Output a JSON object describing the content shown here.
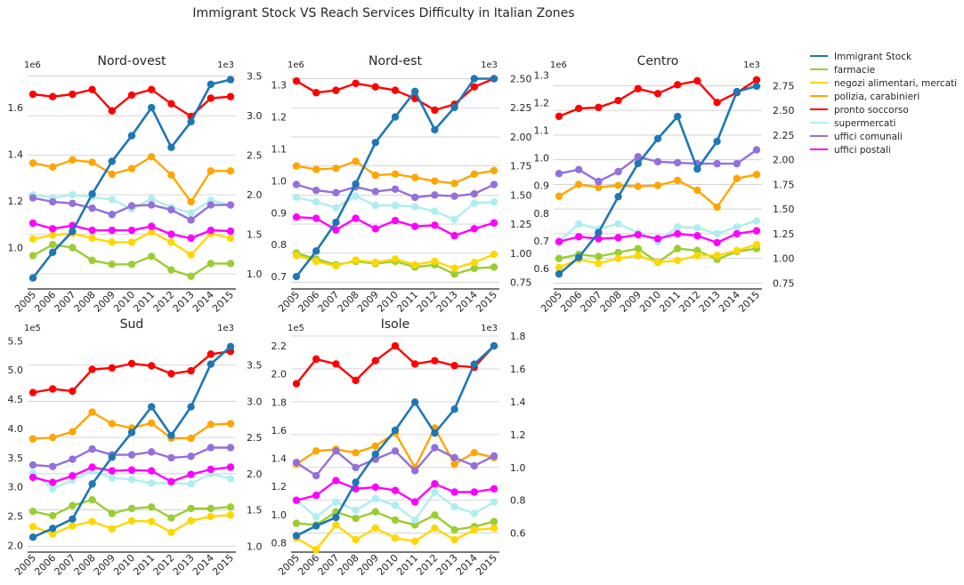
{
  "colors": {
    "Immigrant Stock": "#1f77b4",
    "farmacie": "#9acd32",
    "negozi alimentari, mercati": "#ffd700",
    "polizia, carabinieri": "#ffa500",
    "pronto soccorso": "#ff0000",
    "supermercati": "#afeeee",
    "uffici comunali": "#9370db",
    "uffici postali": "#ff00ff"
  },
  "chart_data": {
    "type": "line",
    "title": "Immigrant Stock VS Reach Services Difficulty in Italian Zones",
    "legend_position": "right",
    "legend": [
      "Immigrant Stock",
      "farmacie",
      "negozi alimentari, mercati",
      "polizia, carabinieri",
      "pronto soccorso",
      "supermercati",
      "uffici comunali",
      "uffici postali"
    ],
    "grid": "horizontal, right axis",
    "x": [
      "2005",
      "2006",
      "2007",
      "2008",
      "2009",
      "2010",
      "2011",
      "2012",
      "2013",
      "2014",
      "2015"
    ],
    "panels": [
      {
        "title": "Nord-ovest",
        "left_exponent": "1e6",
        "right_exponent": "1e3",
        "left_ticks": [
          "1.0",
          "1.2",
          "1.4",
          "1.6"
        ],
        "right_ticks": [
          "1.0",
          "1.5",
          "2.0",
          "2.5",
          "3.0",
          "3.5"
        ],
        "left_ylim": [
          0.827,
          1.749
        ],
        "right_ylim": [
          0.82,
          3.54
        ],
        "immigrant_stock": [
          0.87,
          0.98,
          1.07,
          1.23,
          1.37,
          1.48,
          1.6,
          1.43,
          1.54,
          1.7,
          1.72
        ],
        "series": [
          {
            "name": "farmacie",
            "values": [
              1.23,
              1.37,
              1.33,
              1.17,
              1.12,
              1.12,
              1.22,
              1.05,
              0.97,
              1.13,
              1.13
            ]
          },
          {
            "name": "negozi alimentari, mercati",
            "values": [
              1.44,
              1.49,
              1.51,
              1.45,
              1.4,
              1.4,
              1.53,
              1.4,
              1.24,
              1.51,
              1.45
            ]
          },
          {
            "name": "polizia, carabinieri",
            "values": [
              2.4,
              2.35,
              2.44,
              2.41,
              2.26,
              2.33,
              2.48,
              2.25,
              1.91,
              2.3,
              2.3
            ]
          },
          {
            "name": "pronto soccorso",
            "values": [
              3.27,
              3.24,
              3.27,
              3.33,
              3.06,
              3.26,
              3.33,
              3.15,
              2.99,
              3.22,
              3.24
            ]
          },
          {
            "name": "supermercati",
            "values": [
              2.0,
              1.96,
              2.0,
              1.97,
              1.94,
              1.82,
              1.95,
              1.84,
              1.77,
              1.93,
              1.87
            ]
          },
          {
            "name": "uffici comunali",
            "values": [
              1.96,
              1.91,
              1.89,
              1.83,
              1.75,
              1.86,
              1.87,
              1.81,
              1.68,
              1.87,
              1.87
            ]
          },
          {
            "name": "uffici postali",
            "values": [
              1.64,
              1.57,
              1.61,
              1.55,
              1.55,
              1.55,
              1.6,
              1.5,
              1.45,
              1.55,
              1.54
            ]
          }
        ]
      },
      {
        "title": "Nord-est",
        "left_exponent": "1e6",
        "right_exponent": "1e3",
        "left_ticks": [
          "0.7",
          "0.8",
          "0.9",
          "1.0",
          "1.1",
          "1.2",
          "1.3"
        ],
        "right_ticks": [
          "0.75",
          "1.00",
          "1.25",
          "1.50",
          "1.75",
          "2.00",
          "2.25",
          "2.50"
        ],
        "left_ylim": [
          0.664,
          1.338
        ],
        "right_ylim": [
          0.7,
          2.55
        ],
        "immigrant_stock": [
          0.7,
          0.78,
          0.87,
          0.99,
          1.12,
          1.2,
          1.28,
          1.16,
          1.23,
          1.32,
          1.32
        ],
        "series": [
          {
            "name": "farmacie",
            "values": [
              1.0,
              0.95,
              0.9,
              0.93,
              0.91,
              0.93,
              0.88,
              0.9,
              0.82,
              0.87,
              0.88
            ]
          },
          {
            "name": "negozi alimentari, mercati",
            "values": [
              0.98,
              0.93,
              0.89,
              0.94,
              0.92,
              0.95,
              0.9,
              0.93,
              0.87,
              0.92,
              0.99
            ]
          },
          {
            "name": "polizia, carabinieri",
            "values": [
              1.75,
              1.72,
              1.73,
              1.79,
              1.67,
              1.68,
              1.65,
              1.62,
              1.6,
              1.68,
              1.71
            ]
          },
          {
            "name": "pronto soccorso",
            "values": [
              2.48,
              2.38,
              2.4,
              2.46,
              2.43,
              2.4,
              2.33,
              2.23,
              2.28,
              2.43,
              2.5
            ]
          },
          {
            "name": "supermercati",
            "values": [
              1.48,
              1.44,
              1.39,
              1.49,
              1.41,
              1.41,
              1.4,
              1.36,
              1.29,
              1.43,
              1.44
            ]
          },
          {
            "name": "uffici comunali",
            "values": [
              1.59,
              1.54,
              1.52,
              1.57,
              1.53,
              1.55,
              1.48,
              1.5,
              1.49,
              1.51,
              1.59
            ]
          },
          {
            "name": "uffici postali",
            "values": [
              1.31,
              1.3,
              1.2,
              1.3,
              1.21,
              1.28,
              1.23,
              1.24,
              1.15,
              1.21,
              1.26
            ]
          }
        ]
      },
      {
        "title": "Centro",
        "left_exponent": "1e6",
        "right_exponent": "1e3",
        "left_ticks": [
          "0.6",
          "0.7",
          "0.8",
          "0.9",
          "1.0",
          "1.1",
          "1.2",
          "1.3"
        ],
        "right_ticks": [
          "0.75",
          "1.00",
          "1.25",
          "1.50",
          "1.75",
          "2.00",
          "2.25",
          "2.50",
          "2.75"
        ],
        "left_ylim": [
          0.529,
          1.308
        ],
        "right_ylim": [
          0.7,
          2.88
        ],
        "immigrant_stock": [
          0.58,
          0.64,
          0.73,
          0.86,
          0.98,
          1.07,
          1.15,
          0.96,
          1.06,
          1.24,
          1.26
        ],
        "series": [
          {
            "name": "farmacie",
            "values": [
              1.0,
              1.04,
              1.02,
              1.06,
              1.1,
              0.96,
              1.1,
              1.08,
              0.99,
              1.07,
              1.1
            ]
          },
          {
            "name": "negozi alimentari, mercati",
            "values": [
              0.91,
              0.99,
              0.95,
              1.0,
              1.03,
              0.96,
              0.98,
              1.03,
              1.03,
              1.08,
              1.14
            ]
          },
          {
            "name": "polizia, carabinieri",
            "values": [
              1.63,
              1.75,
              1.72,
              1.74,
              1.73,
              1.74,
              1.79,
              1.69,
              1.52,
              1.81,
              1.85
            ]
          },
          {
            "name": "pronto soccorso",
            "values": [
              2.44,
              2.52,
              2.53,
              2.6,
              2.72,
              2.67,
              2.76,
              2.8,
              2.58,
              2.68,
              2.81
            ]
          },
          {
            "name": "supermercati",
            "values": [
              1.17,
              1.35,
              1.3,
              1.35,
              1.26,
              1.17,
              1.32,
              1.31,
              1.25,
              1.32,
              1.38
            ]
          },
          {
            "name": "uffici comunali",
            "values": [
              1.86,
              1.9,
              1.78,
              1.88,
              2.03,
              1.98,
              1.97,
              1.96,
              1.96,
              1.96,
              2.1
            ]
          },
          {
            "name": "uffici postali",
            "values": [
              1.17,
              1.22,
              1.2,
              1.21,
              1.24,
              1.2,
              1.25,
              1.23,
              1.16,
              1.25,
              1.28
            ]
          }
        ]
      },
      {
        "title": "Sud",
        "left_exponent": "1e5",
        "right_exponent": "1e3",
        "left_ticks": [
          "2.0",
          "2.5",
          "3.0",
          "3.5",
          "4.0",
          "4.5",
          "5.0",
          "5.5"
        ],
        "right_ticks": [
          "1.0",
          "1.5",
          "2.0",
          "2.5",
          "3.0",
          "3.5"
        ],
        "left_ylim": [
          1.9,
          5.58
        ],
        "right_ylim": [
          0.93,
          3.9
        ],
        "immigrant_stock": [
          2.14,
          2.29,
          2.45,
          3.05,
          3.51,
          3.93,
          4.37,
          3.88,
          4.37,
          5.1,
          5.4
        ],
        "series": [
          {
            "name": "farmacie",
            "values": [
              1.48,
              1.42,
              1.56,
              1.64,
              1.45,
              1.52,
              1.54,
              1.39,
              1.52,
              1.52,
              1.54
            ]
          },
          {
            "name": "negozi alimentari, mercati",
            "values": [
              1.27,
              1.17,
              1.28,
              1.34,
              1.24,
              1.35,
              1.34,
              1.19,
              1.35,
              1.41,
              1.43
            ]
          },
          {
            "name": "polizia, carabinieri",
            "values": [
              2.48,
              2.5,
              2.58,
              2.85,
              2.69,
              2.63,
              2.7,
              2.49,
              2.49,
              2.68,
              2.69
            ]
          },
          {
            "name": "pronto soccorso",
            "values": [
              3.12,
              3.17,
              3.14,
              3.44,
              3.46,
              3.52,
              3.49,
              3.38,
              3.42,
              3.65,
              3.69
            ]
          },
          {
            "name": "supermercati",
            "values": [
              2.01,
              1.79,
              1.91,
              2.04,
              1.94,
              1.92,
              1.87,
              1.87,
              1.86,
              2.0,
              1.93
            ]
          },
          {
            "name": "uffici comunali",
            "values": [
              2.12,
              2.1,
              2.2,
              2.34,
              2.26,
              2.26,
              2.3,
              2.22,
              2.24,
              2.36,
              2.36
            ]
          },
          {
            "name": "uffici postali",
            "values": [
              1.95,
              1.88,
              1.97,
              2.09,
              2.04,
              2.05,
              2.04,
              1.89,
              1.99,
              2.06,
              2.09
            ]
          }
        ]
      },
      {
        "title": "Isole",
        "left_exponent": "1e5",
        "right_exponent": "1e3",
        "left_ticks": [
          "0.8",
          "1.0",
          "1.2",
          "1.4",
          "1.6",
          "1.8",
          "2.0",
          "2.2"
        ],
        "right_ticks": [
          "0.6",
          "0.8",
          "1.0",
          "1.2",
          "1.4",
          "1.6",
          "1.8"
        ],
        "left_ylim": [
          0.74,
          2.27
        ],
        "right_ylim": [
          0.49,
          1.8
        ],
        "immigrant_stock": [
          0.85,
          0.92,
          0.98,
          1.23,
          1.43,
          1.6,
          1.8,
          1.58,
          1.75,
          2.07,
          2.2
        ],
        "series": [
          {
            "name": "farmacie",
            "values": [
              0.66,
              0.65,
              0.73,
              0.69,
              0.73,
              0.68,
              0.65,
              0.71,
              0.62,
              0.64,
              0.67
            ]
          },
          {
            "name": "negozi alimentari, mercati",
            "values": [
              0.57,
              0.5,
              0.65,
              0.56,
              0.63,
              0.57,
              0.55,
              0.63,
              0.56,
              0.62,
              0.63
            ]
          },
          {
            "name": "polizia, carabinieri",
            "values": [
              1.02,
              1.1,
              1.11,
              1.09,
              1.13,
              1.21,
              1.0,
              1.24,
              1.02,
              1.09,
              1.06
            ]
          },
          {
            "name": "pronto soccorso",
            "values": [
              1.51,
              1.66,
              1.63,
              1.53,
              1.65,
              1.74,
              1.63,
              1.65,
              1.62,
              1.61,
              1.74
            ]
          },
          {
            "name": "supermercati",
            "values": [
              0.8,
              0.7,
              0.79,
              0.74,
              0.81,
              0.77,
              0.68,
              0.85,
              0.76,
              0.72,
              0.79
            ]
          },
          {
            "name": "uffici comunali",
            "values": [
              1.03,
              0.95,
              1.1,
              1.0,
              1.05,
              1.1,
              0.98,
              1.12,
              1.06,
              1.01,
              1.07
            ]
          },
          {
            "name": "uffici postali",
            "values": [
              0.8,
              0.83,
              0.92,
              0.87,
              0.88,
              0.86,
              0.79,
              0.9,
              0.85,
              0.85,
              0.87
            ]
          }
        ]
      }
    ]
  }
}
